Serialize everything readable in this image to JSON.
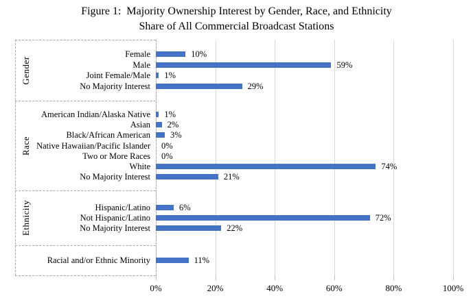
{
  "chart": {
    "title_line1": "Figure 1:  Majority Ownership Interest by Gender, Race, and Ethnicity",
    "title_line2": "Share of All Commercial Broadcast Stations"
  },
  "chart_data": {
    "type": "bar",
    "orientation": "horizontal",
    "title": "Figure 1: Majority Ownership Interest by Gender, Race, and Ethnicity",
    "subtitle": "Share of All Commercial Broadcast Stations",
    "value_format": "percent",
    "xlim": [
      0,
      100
    ],
    "x_ticks": [
      "0%",
      "20%",
      "40%",
      "60%",
      "80%",
      "100%"
    ],
    "grid": true,
    "legend": "none",
    "style": {
      "bar_color": "#4472C4",
      "gridline_color": "#D9D9D9",
      "dashed_box_color": "#A6A6A6",
      "tick_color": "#BFBFBF",
      "text_color": "#000000"
    },
    "groups": [
      {
        "label": "Gender",
        "items": [
          {
            "category": "Female",
            "value": 10,
            "label": "10%"
          },
          {
            "category": "Male",
            "value": 59,
            "label": "59%"
          },
          {
            "category": "Joint Female/Male",
            "value": 1,
            "label": "1%"
          },
          {
            "category": "No Majority Interest",
            "value": 29,
            "label": "29%"
          }
        ]
      },
      {
        "label": "Race",
        "items": [
          {
            "category": "American Indian/Alaska Native",
            "value": 1,
            "label": "1%"
          },
          {
            "category": "Asian",
            "value": 2,
            "label": "2%"
          },
          {
            "category": "Black/African American",
            "value": 3,
            "label": "3%"
          },
          {
            "category": "Native Hawaiian/Pacific Islander",
            "value": 0,
            "label": "0%"
          },
          {
            "category": "Two or More Races",
            "value": 0,
            "label": "0%"
          },
          {
            "category": "White",
            "value": 74,
            "label": "74%"
          },
          {
            "category": "No Majority Interest",
            "value": 21,
            "label": "21%"
          }
        ]
      },
      {
        "label": "Ethnicity",
        "items": [
          {
            "category": "Hispanic/Latino",
            "value": 6,
            "label": "6%"
          },
          {
            "category": "Not Hispanic/Latino",
            "value": 72,
            "label": "72%"
          },
          {
            "category": "No Majority Interest",
            "value": 22,
            "label": "22%"
          }
        ]
      },
      {
        "label": "",
        "items": [
          {
            "category": "Racial and/or Ethnic Minority",
            "value": 11,
            "label": "11%"
          }
        ]
      }
    ]
  }
}
